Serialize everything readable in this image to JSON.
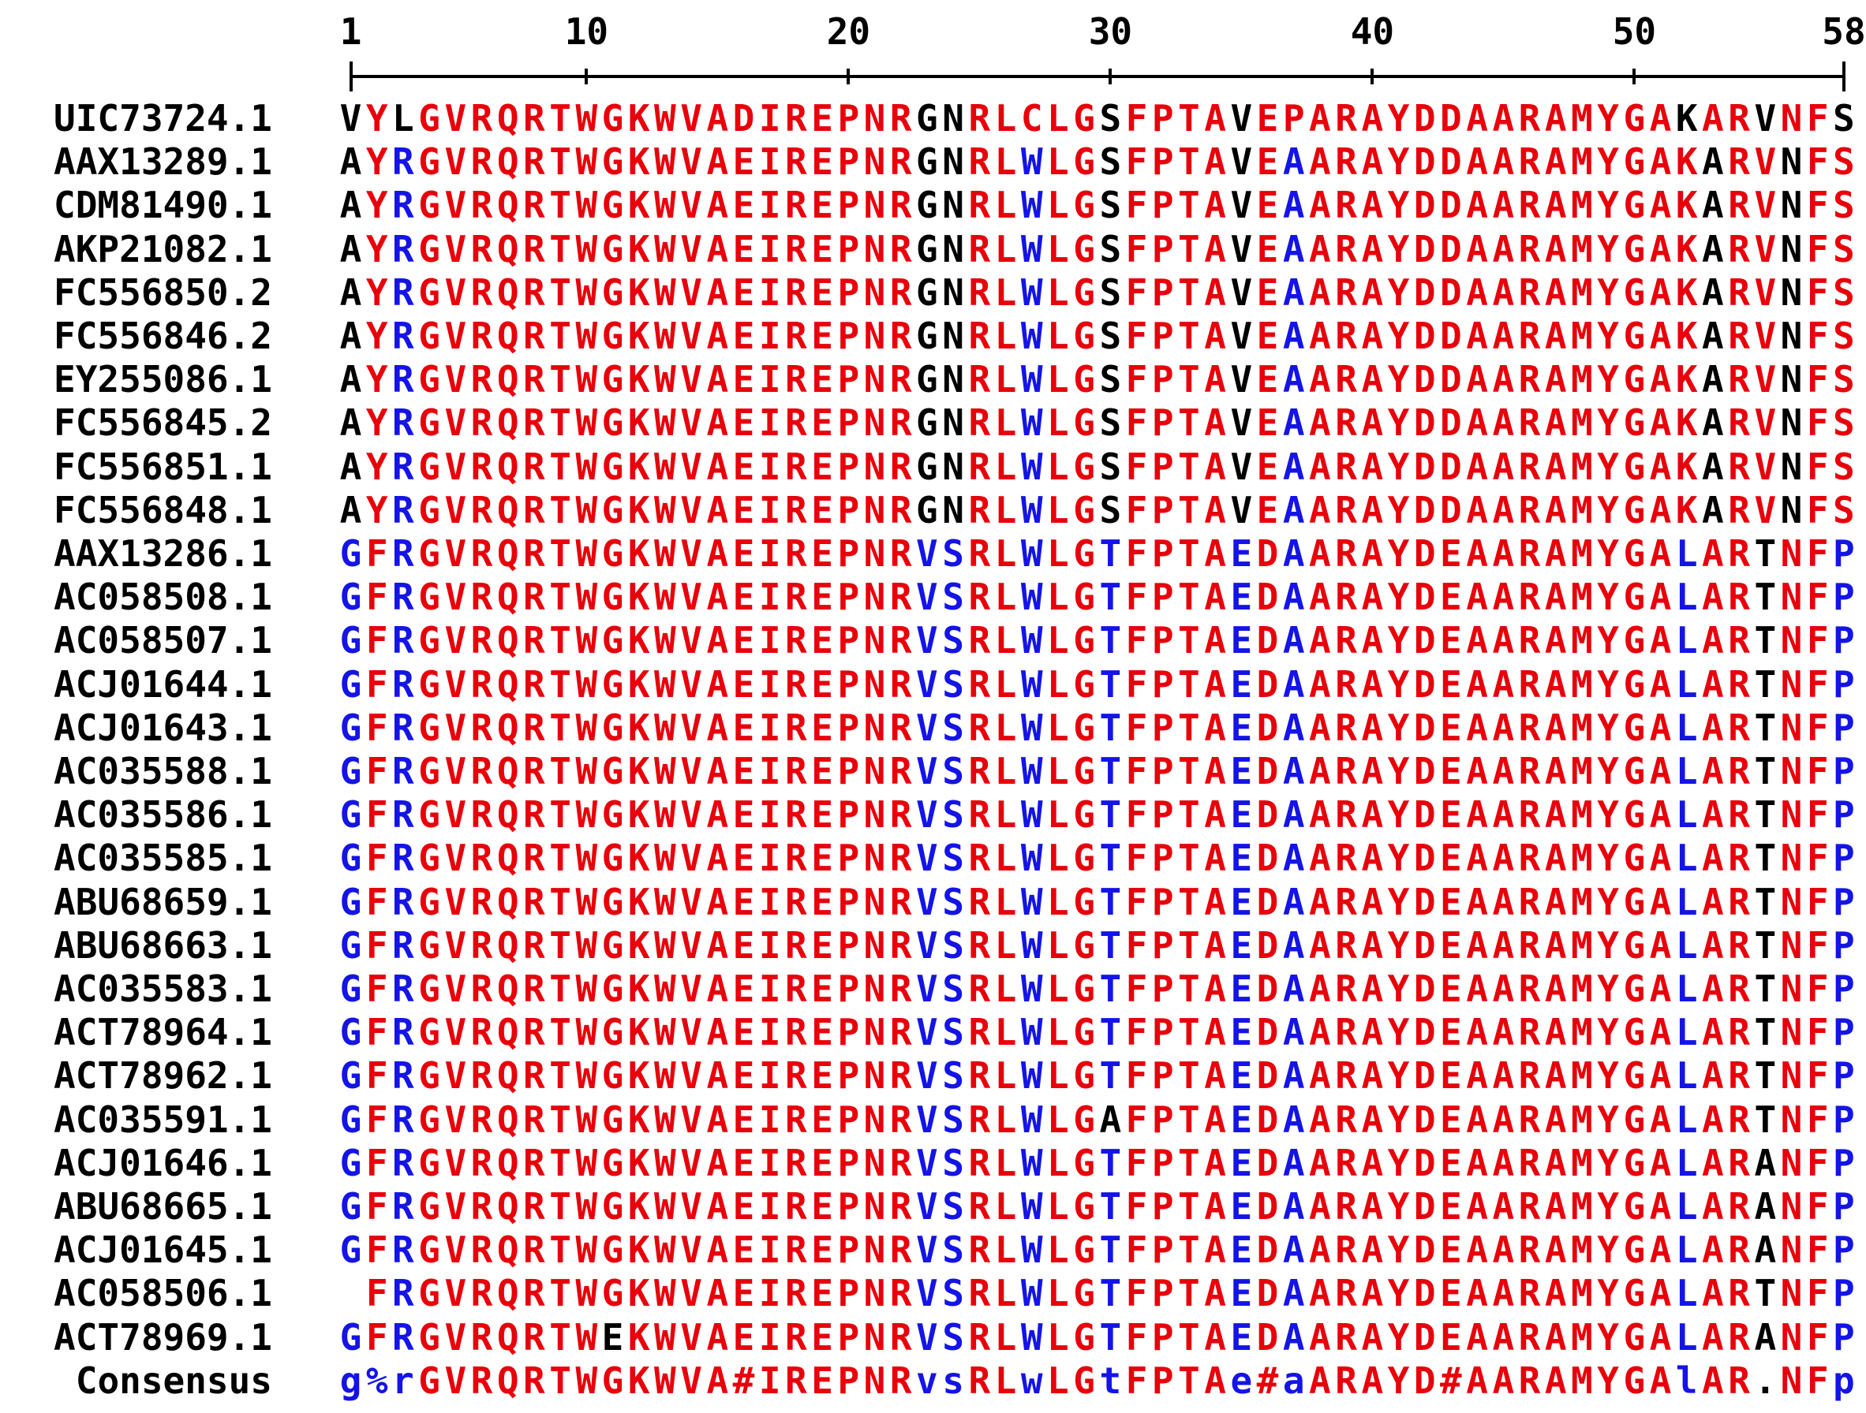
{
  "ruler": {
    "labels": [
      "1",
      "10",
      "20",
      "30",
      "40",
      "50",
      "58"
    ],
    "positions": [
      1,
      10,
      20,
      30,
      40,
      50,
      58
    ]
  },
  "colors": {
    "high": "#e8000b",
    "low": "#1414e6",
    "neutral": "#000000"
  },
  "rows": [
    {
      "id": "UIC73724.1",
      "seq": "VYLGVRQRTWGKWVADIREPNRGNRLCLGSFPTAVEPARAYDDAARAMYGAKARVNFS",
      "colors": "kRkRRRRRRRRRRRRRRRRRRRkkRRRRRkRRRRkRRRRRRRRRRRRRRRRkRRkRRk"
    },
    {
      "id": "AAX13289.1",
      "seq": "AYRGVRQRTWGKWVAEIREPNRGNRLWLGSFPTAVEAARAYDDAARAMYGAKARVNFS",
      "colors": "kRBRRRRRRRRRRRRRRRRRRRkkRRBRRkRRRRkRBRRRRRRRRRRRRRRRkRRkRRk"
    },
    {
      "id": "CDM81490.1",
      "seq": "AYRGVRQRTWGKWVAEIREPNRGNRLWLGSFPTAVEAARAYDDAARAMYGAKARVNFS",
      "colors": "kRBRRRRRRRRRRRRRRRRRRRkkRRBRRkRRRRkRBRRRRRRRRRRRRRRRkRRkRRk"
    },
    {
      "id": "AKP21082.1",
      "seq": "AYRGVRQRTWGKWVAEIREPNRGNRLWLGSFPTAVEAARAYDDAARAMYGAKARVNFS",
      "colors": "kRBRRRRRRRRRRRRRRRRRRRkkRRBRRkRRRRkRBRRRRRRRRRRRRRRRkRRkRRk"
    },
    {
      "id": "FC556850.2",
      "seq": "AYRGVRQRTWGKWVAEIREPNRGNRLWLGSFPTAVEAARAYDDAARAMYGAKARVNFS",
      "colors": "kRBRRRRRRRRRRRRRRRRRRRkkRRBRRkRRRRkRBRRRRRRRRRRRRRRRkRRkRRk"
    },
    {
      "id": "FC556846.2",
      "seq": "AYRGVRQRTWGKWVAEIREPNRGNRLWLGSFPTAVEAARAYDDAARAMYGAKARVNFS",
      "colors": "kRBRRRRRRRRRRRRRRRRRRRkkRRBRRkRRRRkRBRRRRRRRRRRRRRRRkRRkRRk"
    },
    {
      "id": "EY255086.1",
      "seq": "AYRGVRQRTWGKWVAEIREPNRGNRLWLGSFPTAVEAARAYDDAARAMYGAKARVNFS",
      "colors": "kRBRRRRRRRRRRRRRRRRRRRkkRRBRRkRRRRkRBRRRRRRRRRRRRRRRkRRkRRk"
    },
    {
      "id": "FC556845.2",
      "seq": "AYRGVRQRTWGKWVAEIREPNRGNRLWLGSFPTAVEAARAYDDAARAMYGAKARVNFS",
      "colors": "kRBRRRRRRRRRRRRRRRRRRRkkRRBRRkRRRRkRBRRRRRRRRRRRRRRRkRRkRRk"
    },
    {
      "id": "FC556851.1",
      "seq": "AYRGVRQRTWGKWVAEIREPNRGNRLWLGSFPTAVEAARAYDDAARAMYGAKARVNFS",
      "colors": "kRBRRRRRRRRRRRRRRRRRRRkkRRBRRkRRRRkRBRRRRRRRRRRRRRRRkRRkRRk"
    },
    {
      "id": "FC556848.1",
      "seq": "AYRGVRQRTWGKWVAEIREPNRGNRLWLGSFPTAVEAARAYDDAARAMYGAKARVNFS",
      "colors": "kRBRRRRRRRRRRRRRRRRRRRkkRRBRRkRRRRkRBRRRRRRRRRRRRRRRkRRkRRk"
    },
    {
      "id": "AAX13286.1",
      "seq": "GFRGVRQRTWGKWVAEIREPNRVSRLWLGTFPTAEDAARAYDEAARAMYGALARTNFP",
      "colors": "BRBRRRRRRRRRRRRRRRRRRRBBRRBRRBRRRRBRBRRRRRRRRRRRRRRBRRkRRB"
    },
    {
      "id": "AC058508.1",
      "seq": "GFRGVRQRTWGKWVAEIREPNRVSRLWLGTFPTAEDAARAYDEAARAMYGALARTNFP",
      "colors": "BRBRRRRRRRRRRRRRRRRRRRBBRRBRRBRRRRBRBRRRRRRRRRRRRRRBRRkRRB"
    },
    {
      "id": "AC058507.1",
      "seq": "GFRGVRQRTWGKWVAEIREPNRVSRLWLGTFPTAEDAARAYDEAARAMYGALARTNFP",
      "colors": "BRBRRRRRRRRRRRRRRRRRRRBBRRBRRBRRRRBRBRRRRRRRRRRRRRRBRRkRRB"
    },
    {
      "id": "ACJ01644.1",
      "seq": "GFRGVRQRTWGKWVAEIREPNRVSRLWLGTFPTAEDAARAYDEAARAMYGALARTNFP",
      "colors": "BRBRRRRRRRRRRRRRRRRRRRBBRRBRRBRRRRBRBRRRRRRRRRRRRRRBRRkRRB"
    },
    {
      "id": "ACJ01643.1",
      "seq": "GFRGVRQRTWGKWVAEIREPNRVSRLWLGTFPTAEDAARAYDEAARAMYGALARTNFP",
      "colors": "BRBRRRRRRRRRRRRRRRRRRRBBRRBRRBRRRRBRBRRRRRRRRRRRRRRBRRkRRB"
    },
    {
      "id": "AC035588.1",
      "seq": "GFRGVRQRTWGKWVAEIREPNRVSRLWLGTFPTAEDAARAYDEAARAMYGALARTNFP",
      "colors": "BRBRRRRRRRRRRRRRRRRRRRBBRRBRRBRRRRBRBRRRRRRRRRRRRRRBRRkRRB"
    },
    {
      "id": "AC035586.1",
      "seq": "GFRGVRQRTWGKWVAEIREPNRVSRLWLGTFPTAEDAARAYDEAARAMYGALARTNFP",
      "colors": "BRBRRRRRRRRRRRRRRRRRRRBBRRBRRBRRRRBRBRRRRRRRRRRRRRRBRRkRRB"
    },
    {
      "id": "AC035585.1",
      "seq": "GFRGVRQRTWGKWVAEIREPNRVSRLWLGTFPTAEDAARAYDEAARAMYGALARTNFP",
      "colors": "BRBRRRRRRRRRRRRRRRRRRRBBRRBRRBRRRRBRBRRRRRRRRRRRRRRBRRkRRB"
    },
    {
      "id": "ABU68659.1",
      "seq": "GFRGVRQRTWGKWVAEIREPNRVSRLWLGTFPTAEDAARAYDEAARAMYGALARTNFP",
      "colors": "BRBRRRRRRRRRRRRRRRRRRRBBRRBRRBRRRRBRBRRRRRRRRRRRRRRBRRkRRB"
    },
    {
      "id": "ABU68663.1",
      "seq": "GFRGVRQRTWGKWVAEIREPNRVSRLWLGTFPTAEDAARAYDEAARAMYGALARTNFP",
      "colors": "BRBRRRRRRRRRRRRRRRRRRRBBRRBRRBRRRRBRBRRRRRRRRRRRRRRBRRkRRB"
    },
    {
      "id": "AC035583.1",
      "seq": "GFRGVRQRTWGKWVAEIREPNRVSRLWLGTFPTAEDAARAYDEAARAMYGALARTNFP",
      "colors": "BRBRRRRRRRRRRRRRRRRRRRBBRRBRRBRRRRBRBRRRRRRRRRRRRRRBRRkRRB"
    },
    {
      "id": "ACT78964.1",
      "seq": "GFRGVRQRTWGKWVAEIREPNRVSRLWLGTFPTAEDAARAYDEAARAMYGALARTNFP",
      "colors": "BRBRRRRRRRRRRRRRRRRRRRBBRRBRRBRRRRBRBRRRRRRRRRRRRRRBRRkRRB"
    },
    {
      "id": "ACT78962.1",
      "seq": "GFRGVRQRTWGKWVAEIREPNRVSRLWLGTFPTAEDAARAYDEAARAMYGALARTNFP",
      "colors": "BRBRRRRRRRRRRRRRRRRRRRBBRRBRRBRRRRBRBRRRRRRRRRRRRRRBRRkRRB"
    },
    {
      "id": "AC035591.1",
      "seq": "GFRGVRQRTWGKWVAEIREPNRVSRLWLGAFPTAEDAARAYDEAARAMYGALARTNFP",
      "colors": "BRBRRRRRRRRRRRRRRRRRRRBBRRBRRkRRRRBRBRRRRRRRRRRRRRRBRRkRRB"
    },
    {
      "id": "ACJ01646.1",
      "seq": "GFRGVRQRTWGKWVAEIREPNRVSRLWLGTFPTAEDAARAYDEAARAMYGALARANFP",
      "colors": "BRBRRRRRRRRRRRRRRRRRRRBBRRBRRBRRRRBRBRRRRRRRRRRRRRRBRRkRRB"
    },
    {
      "id": "ABU68665.1",
      "seq": "GFRGVRQRTWGKWVAEIREPNRVSRLWLGTFPTAEDAARAYDEAARAMYGALARANFP",
      "colors": "BRBRRRRRRRRRRRRRRRRRRRBBRRBRRBRRRRBRBRRRRRRRRRRRRRRBRRkRRB"
    },
    {
      "id": "ACJ01645.1",
      "seq": "GFRGVRQRTWGKWVAEIREPNRVSRLWLGTFPTAEDAARAYDEAARAMYGALARANFP",
      "colors": "BRBRRRRRRRRRRRRRRRRRRRBBRRBRRBRRRRBRBRRRRRRRRRRRRRRBRRkRRB"
    },
    {
      "id": "AC058506.1",
      "seq": " FRGVRQRTWGKWVAEIREPNRVSRLWLGTFPTAEDAARAYDEAARAMYGALARTNFP",
      "colors": "kRBRRRRRRRRRRRRRRRRRRRBBRRBRRBRRRRBRBRRRRRRRRRRRRRRBRRkRRB"
    },
    {
      "id": "ACT78969.1",
      "seq": "GFRGVRQRTWEKWVAEIREPNRVSRLWLGTFPTAEDAARAYDEAARAMYGALARANFP",
      "colors": "BRBRRRRRRRkRRRRRRRRRRRBBRRBRRBRRRRBRBRRRRRRRRRRRRRRBRRkRRB"
    }
  ],
  "consensus": {
    "label": "Consensus",
    "seq": "g%rGVRQRTWGKWVA#IREPNRvsRLwLGtFPTAe#aARAYD#AARAMYGAlAR.NFp",
    "colors": "BBBRRRRRRRRRRRRRRRRRRRBBRRBRRBRRRRBRBRRRRRRRRRRRRRRBRRkRRB"
  }
}
